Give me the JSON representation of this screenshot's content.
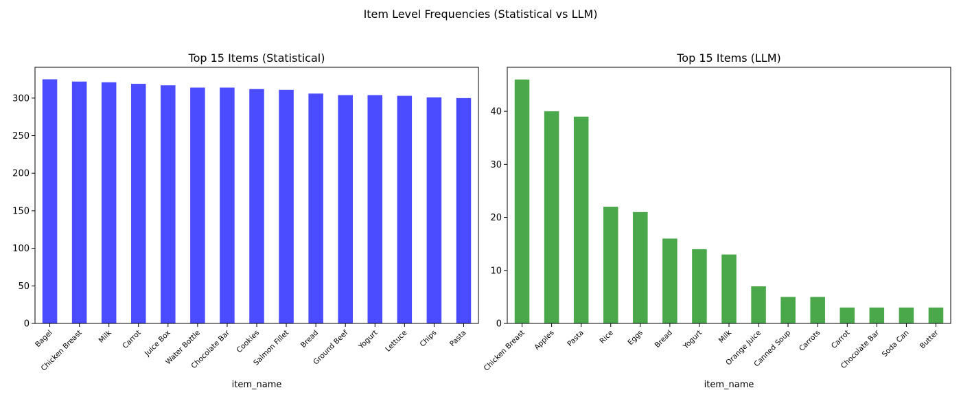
{
  "figure": {
    "suptitle": "Item Level Frequencies (Statistical vs LLM)"
  },
  "chart_data": [
    {
      "type": "bar",
      "title": "Top 15 Items (Statistical)",
      "xlabel": "item_name",
      "ylabel": "",
      "color": "#4b4bff",
      "ylim": [
        0,
        341
      ],
      "yticks": [
        0,
        50,
        100,
        150,
        200,
        250,
        300
      ],
      "categories": [
        "Bagel",
        "Chicken Breast",
        "Milk",
        "Carrot",
        "Juice Box",
        "Water Bottle",
        "Chocolate Bar",
        "Cookies",
        "Salmon Fillet",
        "Bread",
        "Ground Beef",
        "Yogurt",
        "Lettuce",
        "Chips",
        "Pasta"
      ],
      "values": [
        325,
        322,
        321,
        319,
        317,
        314,
        314,
        312,
        311,
        306,
        304,
        304,
        303,
        301,
        300
      ],
      "grid": false,
      "legend": "none"
    },
    {
      "type": "bar",
      "title": "Top 15 Items (LLM)",
      "xlabel": "item_name",
      "ylabel": "",
      "color": "#4aa74a",
      "ylim": [
        0,
        48.3
      ],
      "yticks": [
        0,
        10,
        20,
        30,
        40
      ],
      "categories": [
        "Chicken Breast",
        "Apples",
        "Pasta",
        "Rice",
        "Eggs",
        "Bread",
        "Yogurt",
        "Milk",
        "Orange Juice",
        "Canned Soup",
        "Carrots",
        "Carrot",
        "Chocolate Bar",
        "Soda Can",
        "Butter"
      ],
      "values": [
        46,
        40,
        39,
        22,
        21,
        16,
        14,
        13,
        7,
        5,
        5,
        3,
        3,
        3,
        3
      ],
      "grid": false,
      "legend": "none"
    }
  ]
}
